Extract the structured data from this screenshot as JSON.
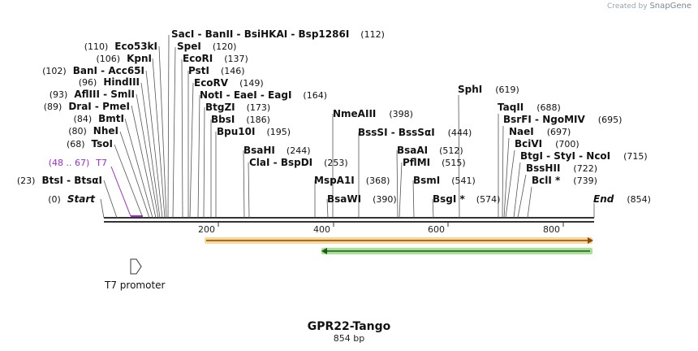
{
  "credit": {
    "prefix": "Created by",
    "brand": "SnapGene"
  },
  "title": "GPR22-Tango",
  "length_label": "854 bp",
  "ticks": [
    "200",
    "400",
    "600",
    "800"
  ],
  "promoter": {
    "label": "T7 promoter"
  },
  "colors": {
    "line": "#333333",
    "purple": "#9a2fd1",
    "arrow_orange": "#f5a623",
    "arrow_green": "#5cc940"
  },
  "labels": [
    {
      "num": "(0)",
      "name": "Start",
      "italic": true
    },
    {
      "num": "(23)",
      "name": "BtsI  -  BtsαI"
    },
    {
      "num": "(48 .. 67)",
      "name": "T7",
      "purple": true
    },
    {
      "num": "(68)",
      "name": "TsoI"
    },
    {
      "num": "(80)",
      "name": "NheI"
    },
    {
      "num": "(84)",
      "name": "BmtI"
    },
    {
      "num": "(89)",
      "name": "DraI  -  PmeI"
    },
    {
      "num": "(93)",
      "name": "AflIII  -  SmlI"
    },
    {
      "num": "(96)",
      "name": "HindIII"
    },
    {
      "num": "(102)",
      "name": "BanI  -  Acc65I"
    },
    {
      "num": "(106)",
      "name": "KpnI"
    },
    {
      "num": "(110)",
      "name": "Eco53kI"
    },
    {
      "num": "(112)",
      "name": "SacI  -  BanII  -  BsiHKAI  -  Bsp1286I"
    },
    {
      "num": "(120)",
      "name": "SpeI"
    },
    {
      "num": "(137)",
      "name": "EcoRI"
    },
    {
      "num": "(146)",
      "name": "PstI"
    },
    {
      "num": "(149)",
      "name": "EcoRV"
    },
    {
      "num": "(164)",
      "name": "NotI  -  EaeI  -  EagI"
    },
    {
      "num": "(173)",
      "name": "BtgZI"
    },
    {
      "num": "(186)",
      "name": "BbsI"
    },
    {
      "num": "(195)",
      "name": "Bpu10I"
    },
    {
      "num": "(244)",
      "name": "BsaHI"
    },
    {
      "num": "(253)",
      "name": "ClaI  -  BspDI"
    },
    {
      "num": "(368)",
      "name": "MspA1I"
    },
    {
      "num": "(390)",
      "name": "BsaWI"
    },
    {
      "num": "(398)",
      "name": "NmeAIII"
    },
    {
      "num": "(444)",
      "name": "BssSI  -  BssSαI"
    },
    {
      "num": "(512)",
      "name": "BsaAI"
    },
    {
      "num": "(515)",
      "name": "PflMI"
    },
    {
      "num": "(541)",
      "name": "BsmI"
    },
    {
      "num": "(574)",
      "name": "BsgI *"
    },
    {
      "num": "(619)",
      "name": "SphI"
    },
    {
      "num": "(688)",
      "name": "TaqII"
    },
    {
      "num": "(695)",
      "name": "BsrFI  -  NgoMIV"
    },
    {
      "num": "(697)",
      "name": "NaeI"
    },
    {
      "num": "(700)",
      "name": "BciVI"
    },
    {
      "num": "(715)",
      "name": "BtgI  -  StyI  -  NcoI"
    },
    {
      "num": "(722)",
      "name": "BssHII"
    },
    {
      "num": "(739)",
      "name": "BclI *"
    },
    {
      "num": "(854)",
      "name": "End",
      "italic": true
    }
  ]
}
